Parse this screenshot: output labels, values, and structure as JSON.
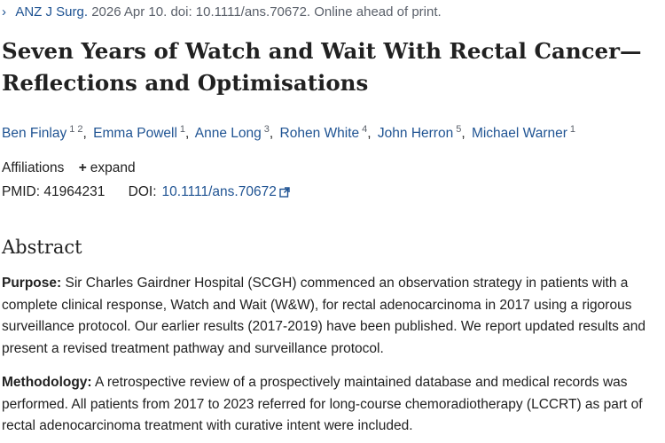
{
  "citation": {
    "journal": "ANZ J Surg.",
    "rest": "2026 Apr 10. doi: 10.1111/ans.70672. Online ahead of print."
  },
  "title": "Seven Years of Watch and Wait With Rectal Cancer—Reflections and Optimisations",
  "authors": [
    {
      "name": "Ben Finlay",
      "affil": "1 2"
    },
    {
      "name": "Emma Powell",
      "affil": "1"
    },
    {
      "name": "Anne Long",
      "affil": "3"
    },
    {
      "name": "Rohen White",
      "affil": "4"
    },
    {
      "name": "John Herron",
      "affil": "5"
    },
    {
      "name": "Michael Warner",
      "affil": "1"
    }
  ],
  "affiliations": {
    "label": "Affiliations",
    "expand_label": "expand"
  },
  "identifiers": {
    "pmid_label": "PMID:",
    "pmid": "41964231",
    "doi_label": "DOI:",
    "doi": "10.1111/ans.70672"
  },
  "abstract": {
    "heading": "Abstract",
    "sections": [
      {
        "label": "Purpose:",
        "text": "Sir Charles Gairdner Hospital (SCGH) commenced an observation strategy in patients with a complete clinical response, Watch and Wait (W&W), for rectal adenocarcinoma in 2017 using a rigorous surveillance protocol. Our earlier results (2017-2019) have been published. We report updated results and present a revised treatment pathway and surveillance protocol."
      },
      {
        "label": "Methodology:",
        "text": "A retrospective review of a prospectively maintained database and medical records was performed. All patients from 2017 to 2023 referred for long-course chemoradiotherapy (LCCRT) as part of rectal adenocarcinoma treatment with curative intent were included."
      }
    ]
  },
  "colors": {
    "link": "#205493",
    "text": "#212121",
    "muted": "#5b616b"
  },
  "icons": {
    "citation_chevron": "chevron-right-icon",
    "expand": "plus-icon",
    "doi_external": "external-link-icon"
  }
}
